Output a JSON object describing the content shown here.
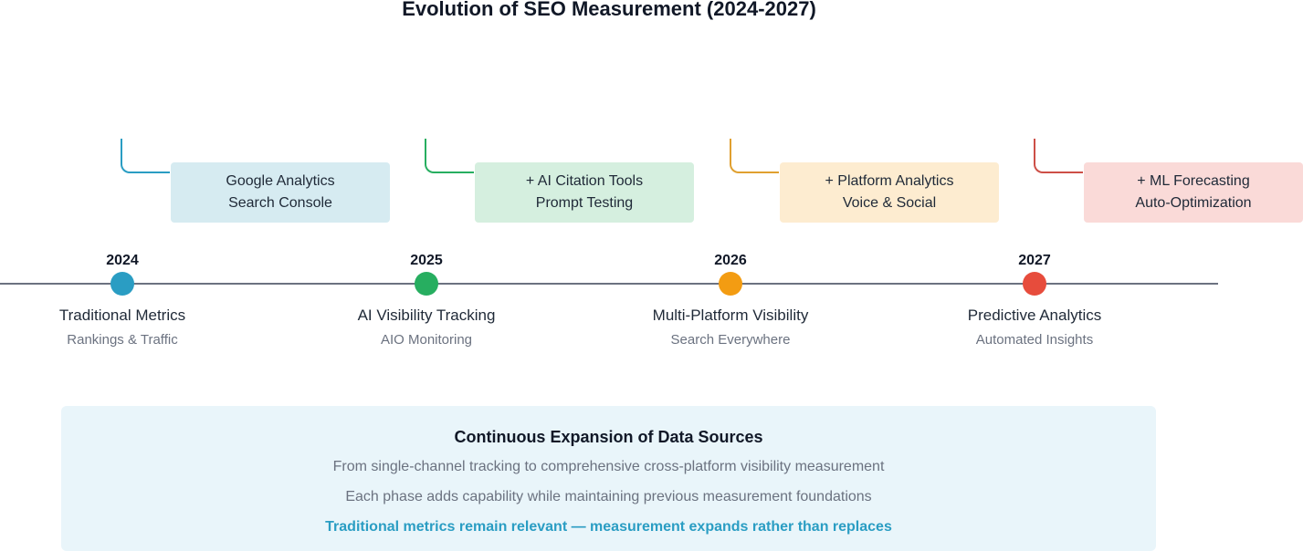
{
  "title": "Evolution of SEO Measurement (2024-2027)",
  "colors": {
    "axis": "#6b7280",
    "blue": "#2a9dc3",
    "green": "#27ae60",
    "orange": "#f39c12",
    "red": "#e74c3c",
    "highlight": "#2a9dc3"
  },
  "phases": [
    {
      "year": "2024",
      "title": "Traditional Metrics",
      "subtitle": "Rankings & Traffic",
      "features": [
        "Google Analytics",
        "Search Console"
      ],
      "dot_color": "#2a9dc3",
      "box_color": "#d6ebf1",
      "line_color": "#2a9dc3"
    },
    {
      "year": "2025",
      "title": "AI Visibility Tracking",
      "subtitle": "AIO Monitoring",
      "features": [
        "+ AI Citation Tools",
        "Prompt Testing"
      ],
      "dot_color": "#27ae60",
      "box_color": "#d5efdf",
      "line_color": "#27ae60"
    },
    {
      "year": "2026",
      "title": "Multi-Platform Visibility",
      "subtitle": "Search Everywhere",
      "features": [
        "+ Platform Analytics",
        "Voice & Social"
      ],
      "dot_color": "#f39c12",
      "box_color": "#fdecd0",
      "line_color": "#e0a030"
    },
    {
      "year": "2027",
      "title": "Predictive Analytics",
      "subtitle": "Automated Insights",
      "features": [
        "+ ML Forecasting",
        "Auto-Optimization"
      ],
      "dot_color": "#e74c3c",
      "box_color": "#fadad8",
      "line_color": "#cd4f47"
    }
  ],
  "summary": {
    "title": "Continuous Expansion of Data Sources",
    "line1": "From single-channel tracking to comprehensive cross-platform visibility measurement",
    "line2": "Each phase adds capability while maintaining previous measurement foundations",
    "highlight": "Traditional metrics remain relevant — measurement expands rather than replaces"
  }
}
